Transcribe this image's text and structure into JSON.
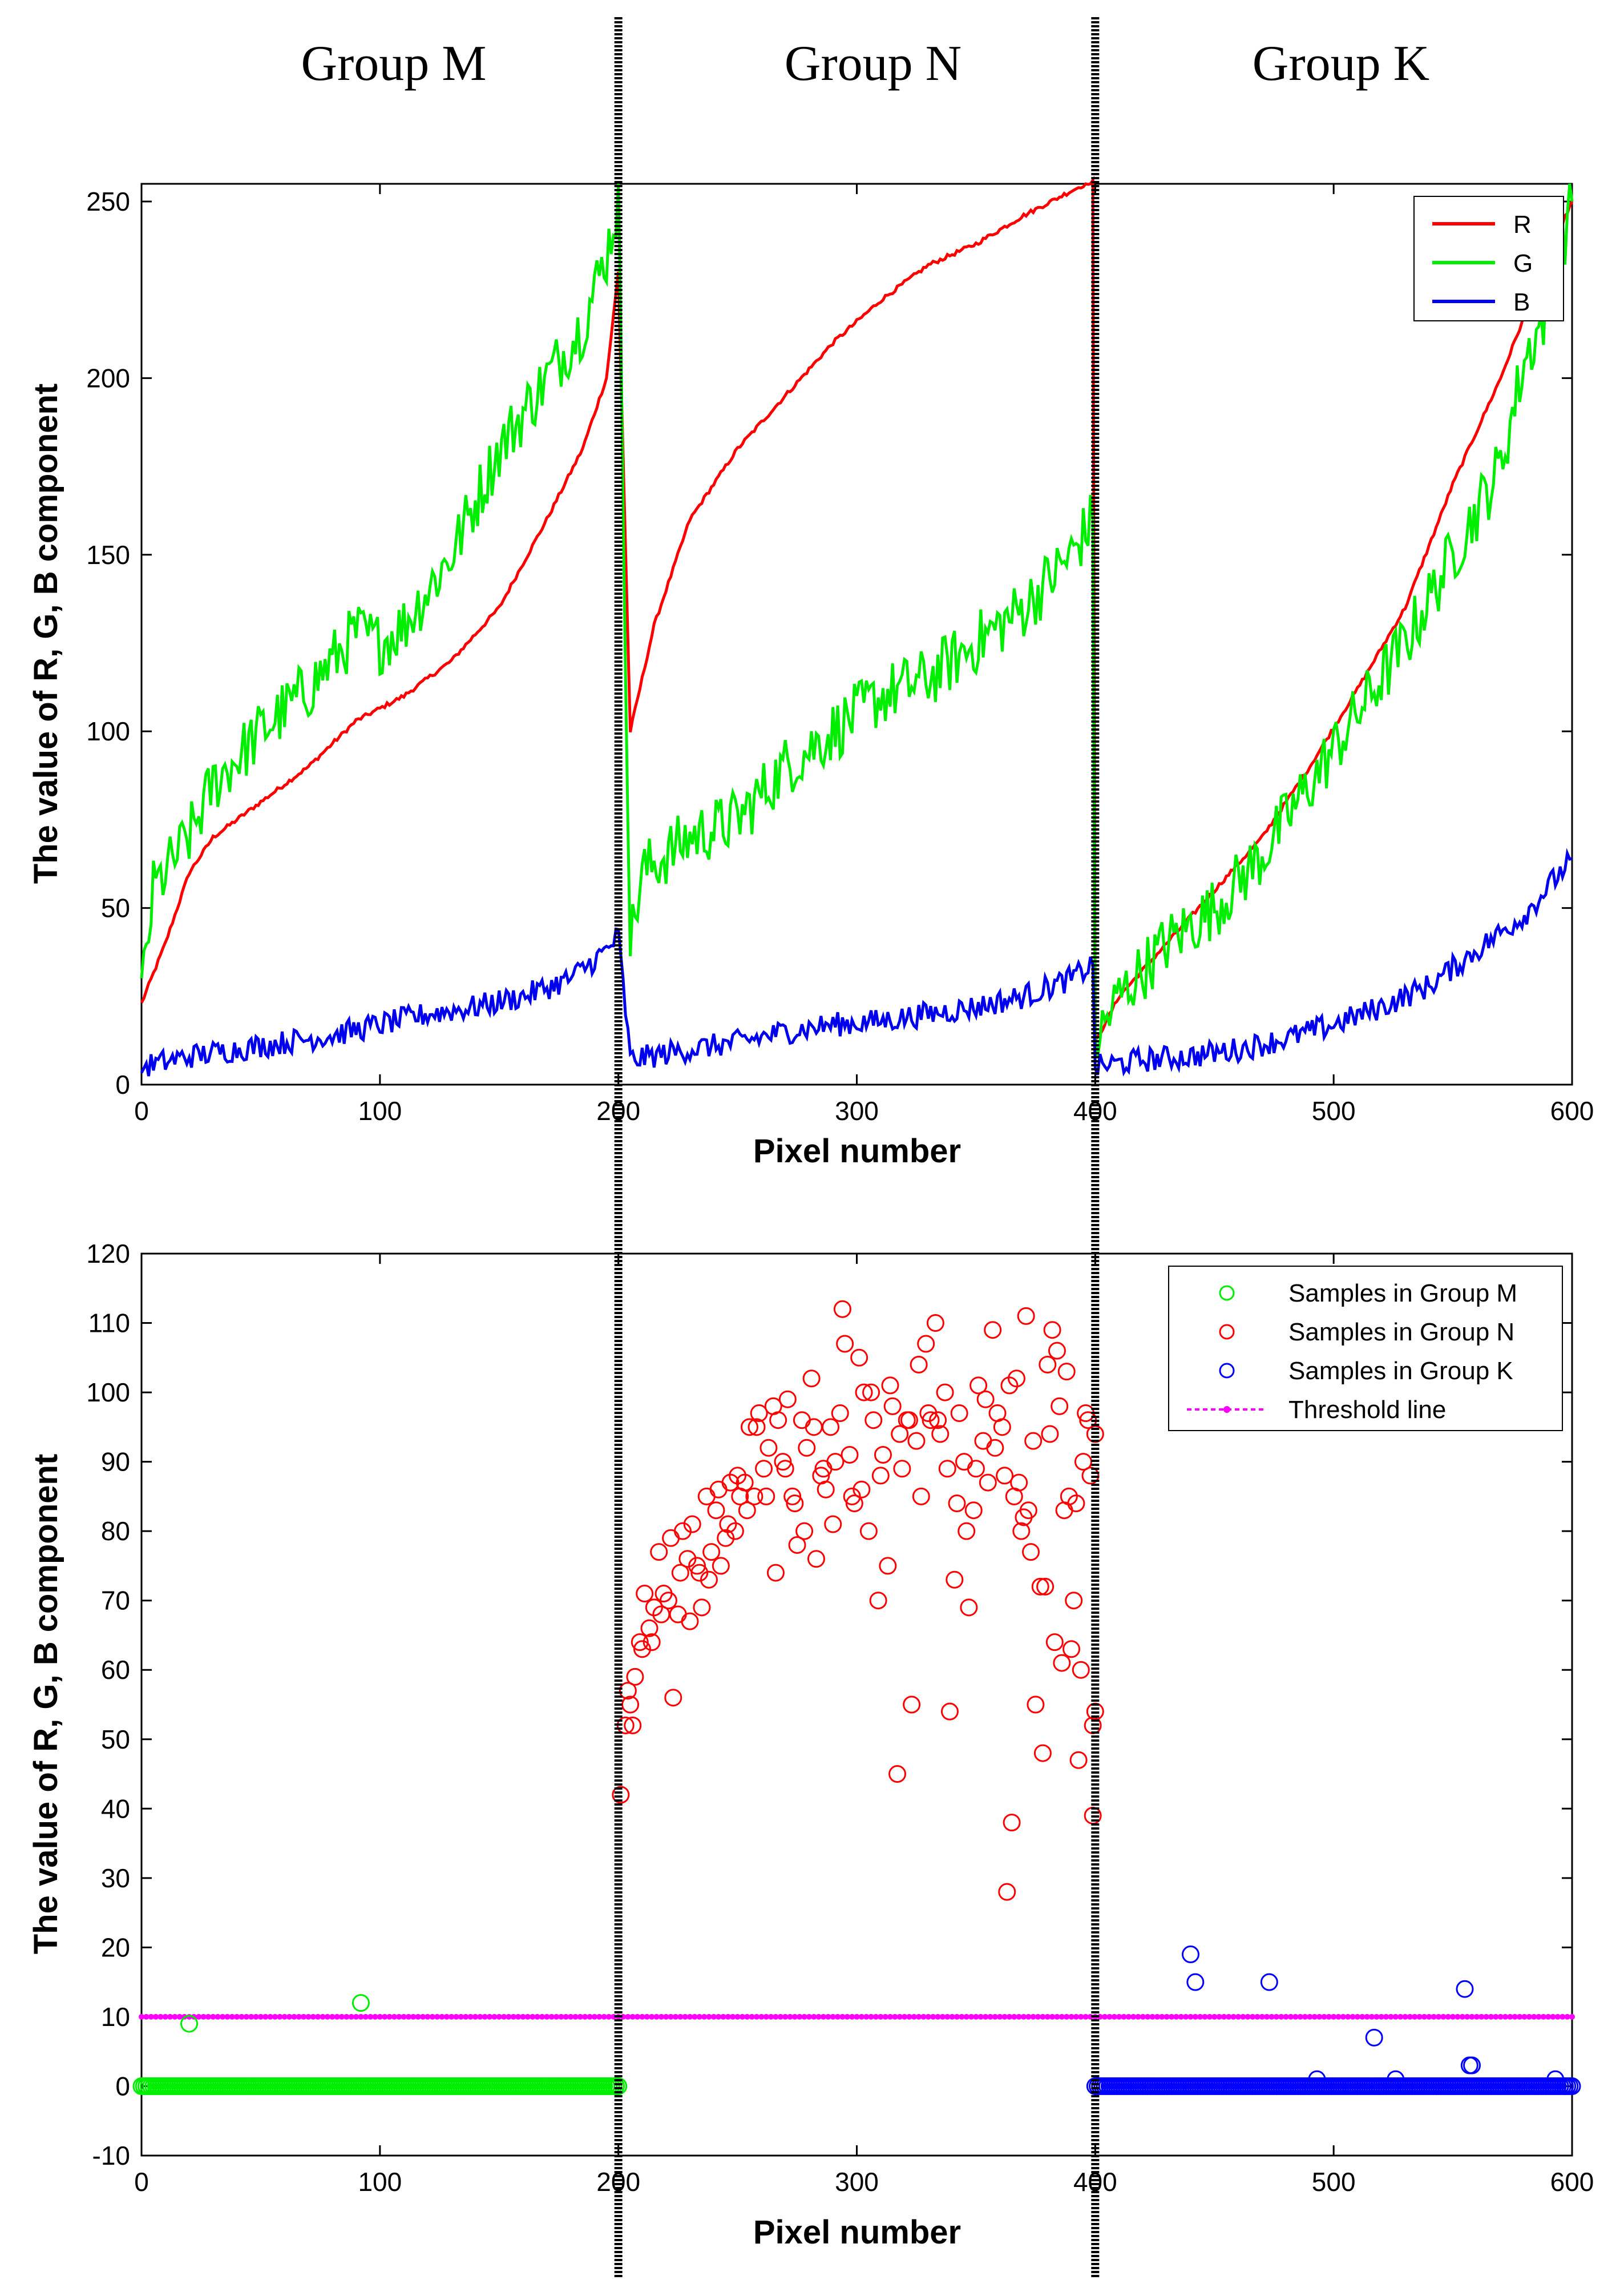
{
  "group_labels": [
    "Group M",
    "Group N",
    "Group K"
  ],
  "colors": {
    "R": "#ff0000",
    "G": "#00ee00",
    "B": "#0000ee",
    "threshold": "#ff00ff",
    "groupM": "#00ee00",
    "groupN": "#ff0000",
    "groupK": "#0000ff"
  },
  "chart_data": [
    {
      "type": "line",
      "xlabel": "Pixel number",
      "ylabel": "The value of R, G, B component",
      "xlim": [
        0,
        600
      ],
      "ylim": [
        0,
        255
      ],
      "xticks": [
        0,
        100,
        200,
        300,
        400,
        500,
        600
      ],
      "yticks": [
        0,
        50,
        100,
        150,
        200,
        250
      ],
      "legend": [
        "R",
        "G",
        "B"
      ],
      "legend_position": "top-right",
      "series": [
        {
          "name": "R",
          "x": [
            0,
            10,
            20,
            30,
            50,
            70,
            90,
            110,
            130,
            150,
            170,
            185,
            195,
            200,
            205,
            215,
            230,
            250,
            270,
            290,
            310,
            330,
            350,
            370,
            390,
            399,
            400,
            410,
            430,
            450,
            470,
            490,
            510,
            530,
            550,
            570,
            590,
            600
          ],
          "values": [
            23,
            40,
            60,
            70,
            80,
            90,
            103,
            110,
            120,
            135,
            160,
            180,
            200,
            230,
            100,
            130,
            160,
            180,
            195,
            210,
            222,
            232,
            238,
            246,
            253,
            256,
            12,
            25,
            40,
            55,
            70,
            90,
            112,
            135,
            170,
            200,
            235,
            250
          ]
        },
        {
          "name": "G",
          "x": [
            0,
            5,
            10,
            20,
            30,
            50,
            70,
            80,
            90,
            100,
            110,
            120,
            130,
            140,
            150,
            160,
            170,
            180,
            185,
            195,
            200,
            205,
            210,
            230,
            250,
            270,
            290,
            310,
            330,
            350,
            370,
            390,
            399,
            400,
            410,
            430,
            450,
            470,
            490,
            510,
            530,
            550,
            570,
            580,
            590,
            600
          ],
          "values": [
            25,
            55,
            60,
            70,
            85,
            100,
            112,
            120,
            128,
            125,
            130,
            140,
            150,
            165,
            180,
            190,
            200,
            210,
            215,
            235,
            250,
            40,
            60,
            70,
            75,
            90,
            100,
            110,
            115,
            125,
            135,
            150,
            160,
            12,
            25,
            40,
            50,
            65,
            85,
            105,
            125,
            150,
            175,
            205,
            220,
            250
          ]
        },
        {
          "name": "B",
          "x": [
            0,
            20,
            40,
            60,
            80,
            100,
            120,
            140,
            160,
            180,
            195,
            200,
            205,
            230,
            250,
            270,
            290,
            310,
            330,
            350,
            370,
            390,
            399,
            400,
            420,
            440,
            460,
            480,
            500,
            520,
            540,
            560,
            580,
            600
          ],
          "values": [
            5,
            8,
            10,
            12,
            14,
            17,
            20,
            22,
            25,
            30,
            38,
            42,
            7,
            10,
            12,
            15,
            17,
            18,
            20,
            22,
            25,
            30,
            34,
            5,
            7,
            8,
            10,
            13,
            17,
            22,
            28,
            38,
            48,
            64
          ]
        }
      ]
    },
    {
      "type": "scatter",
      "xlabel": "Pixel number",
      "ylabel": "The value of R, G, B component",
      "xlim": [
        0,
        600
      ],
      "ylim": [
        -10,
        120
      ],
      "xticks": [
        0,
        100,
        200,
        300,
        400,
        500,
        600
      ],
      "yticks": [
        -10,
        0,
        10,
        20,
        30,
        40,
        50,
        60,
        70,
        80,
        90,
        100,
        110,
        120
      ],
      "legend": [
        "Samples in Group M",
        "Samples in Group N",
        "Samples in Group K",
        "Threshold line"
      ],
      "legend_position": "top-right",
      "threshold": 10,
      "series": [
        {
          "name": "Samples in Group M",
          "x_range": [
            0,
            200
          ],
          "baseline": 0,
          "outliers": [
            [
              20,
              9
            ],
            [
              92,
              12
            ]
          ]
        },
        {
          "name": "Samples in Group N",
          "points": [
            [
              201,
              42
            ],
            [
              203,
              52
            ],
            [
              205,
              55
            ],
            [
              207,
              59
            ],
            [
              209,
              64
            ],
            [
              211,
              71
            ],
            [
              213,
              66
            ],
            [
              215,
              69
            ],
            [
              217,
              77
            ],
            [
              219,
              71
            ],
            [
              221,
              70
            ],
            [
              223,
              56
            ],
            [
              225,
              68
            ],
            [
              227,
              80
            ],
            [
              229,
              76
            ],
            [
              231,
              81
            ],
            [
              233,
              75
            ],
            [
              235,
              69
            ],
            [
              237,
              85
            ],
            [
              239,
              77
            ],
            [
              241,
              83
            ],
            [
              243,
              75
            ],
            [
              245,
              79
            ],
            [
              247,
              87
            ],
            [
              249,
              80
            ],
            [
              251,
              85
            ],
            [
              253,
              87
            ],
            [
              255,
              95
            ],
            [
              257,
              85
            ],
            [
              259,
              97
            ],
            [
              261,
              89
            ],
            [
              263,
              92
            ],
            [
              265,
              98
            ],
            [
              267,
              96
            ],
            [
              269,
              90
            ],
            [
              271,
              99
            ],
            [
              273,
              85
            ],
            [
              275,
              78
            ],
            [
              277,
              96
            ],
            [
              279,
              92
            ],
            [
              281,
              102
            ],
            [
              283,
              76
            ],
            [
              285,
              88
            ],
            [
              287,
              86
            ],
            [
              289,
              95
            ],
            [
              291,
              90
            ],
            [
              293,
              97
            ],
            [
              295,
              107
            ],
            [
              297,
              91
            ],
            [
              299,
              84
            ],
            [
              301,
              105
            ],
            [
              303,
              100
            ],
            [
              305,
              80
            ],
            [
              307,
              96
            ],
            [
              309,
              70
            ],
            [
              311,
              91
            ],
            [
              313,
              75
            ],
            [
              315,
              98
            ],
            [
              317,
              45
            ],
            [
              319,
              89
            ],
            [
              321,
              96
            ],
            [
              323,
              55
            ],
            [
              325,
              93
            ],
            [
              327,
              85
            ],
            [
              329,
              107
            ],
            [
              331,
              96
            ],
            [
              333,
              110
            ],
            [
              335,
              94
            ],
            [
              337,
              100
            ],
            [
              339,
              54
            ],
            [
              341,
              73
            ],
            [
              343,
              97
            ],
            [
              345,
              90
            ],
            [
              347,
              69
            ],
            [
              349,
              83
            ],
            [
              351,
              101
            ],
            [
              353,
              93
            ],
            [
              355,
              87
            ],
            [
              357,
              109
            ],
            [
              359,
              97
            ],
            [
              361,
              95
            ],
            [
              363,
              28
            ],
            [
              365,
              38
            ],
            [
              367,
              102
            ],
            [
              369,
              80
            ],
            [
              371,
              111
            ],
            [
              373,
              77
            ],
            [
              375,
              55
            ],
            [
              377,
              72
            ],
            [
              379,
              72
            ],
            [
              381,
              94
            ],
            [
              383,
              64
            ],
            [
              385,
              98
            ],
            [
              387,
              83
            ],
            [
              389,
              85
            ],
            [
              391,
              70
            ],
            [
              393,
              47
            ],
            [
              395,
              90
            ],
            [
              397,
              96
            ],
            [
              399,
              39
            ],
            [
              364,
              101
            ],
            [
              368,
              87
            ],
            [
              372,
              83
            ],
            [
              380,
              104
            ],
            [
              384,
              106
            ],
            [
              388,
              103
            ],
            [
              392,
              84
            ],
            [
              396,
              97
            ],
            [
              398,
              88
            ],
            [
              400,
              94
            ],
            [
              400,
              54
            ],
            [
              399,
              52
            ],
            [
              394,
              60
            ],
            [
              390,
              63
            ],
            [
              386,
              61
            ],
            [
              382,
              109
            ],
            [
              378,
              48
            ],
            [
              374,
              93
            ],
            [
              370,
              82
            ],
            [
              366,
              85
            ],
            [
              362,
              88
            ],
            [
              358,
              92
            ],
            [
              354,
              99
            ],
            [
              350,
              89
            ],
            [
              346,
              80
            ],
            [
              342,
              84
            ],
            [
              338,
              89
            ],
            [
              334,
              96
            ],
            [
              330,
              97
            ],
            [
              326,
              104
            ],
            [
              322,
              96
            ],
            [
              318,
              94
            ],
            [
              314,
              101
            ],
            [
              310,
              88
            ],
            [
              306,
              100
            ],
            [
              302,
              86
            ],
            [
              298,
              85
            ],
            [
              294,
              112
            ],
            [
              290,
              81
            ],
            [
              286,
              89
            ],
            [
              282,
              95
            ],
            [
              278,
              80
            ],
            [
              274,
              84
            ],
            [
              270,
              89
            ],
            [
              266,
              74
            ],
            [
              262,
              85
            ],
            [
              258,
              95
            ],
            [
              254,
              83
            ],
            [
              250,
              88
            ],
            [
              246,
              81
            ],
            [
              242,
              86
            ],
            [
              238,
              73
            ],
            [
              234,
              74
            ],
            [
              230,
              67
            ],
            [
              226,
              74
            ],
            [
              222,
              79
            ],
            [
              218,
              68
            ],
            [
              214,
              64
            ],
            [
              210,
              63
            ],
            [
              206,
              52
            ],
            [
              204,
              57
            ]
          ]
        },
        {
          "name": "Samples in Group K",
          "x_range": [
            400,
            600
          ],
          "baseline": 0,
          "outliers": [
            [
              440,
              19
            ],
            [
              442,
              15
            ],
            [
              473,
              15
            ],
            [
              493,
              1
            ],
            [
              517,
              7
            ],
            [
              526,
              1
            ],
            [
              555,
              14
            ],
            [
              557,
              3
            ],
            [
              558,
              3
            ],
            [
              593,
              1
            ],
            [
              597,
              0
            ]
          ]
        },
        {
          "name": "Threshold line",
          "value": 10,
          "x_range": [
            0,
            600
          ]
        }
      ]
    }
  ]
}
